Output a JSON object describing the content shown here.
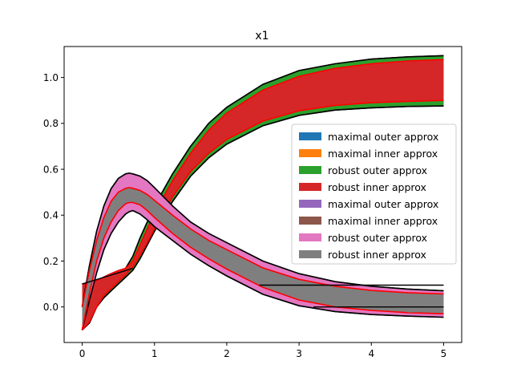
{
  "chart_data": {
    "type": "area",
    "title": "x1",
    "xlabel": "",
    "ylabel": "",
    "xlim": [
      -0.25,
      5.25
    ],
    "ylim": [
      -0.155,
      1.135
    ],
    "xticks": [
      0,
      1,
      2,
      3,
      4,
      5
    ],
    "xtick_labels": [
      "0",
      "1",
      "2",
      "3",
      "4",
      "5"
    ],
    "yticks": [
      0.0,
      0.2,
      0.4,
      0.6,
      0.8,
      1.0
    ],
    "ytick_labels": [
      "0.0",
      "0.2",
      "0.4",
      "0.6",
      "0.8",
      "1.0"
    ],
    "grid": false,
    "legend_position": "center-right",
    "series": [
      {
        "name": "maximal outer approx",
        "color": "#1f77b4",
        "x": [
          0.0,
          0.1,
          0.2,
          0.3,
          0.4,
          0.5,
          0.6,
          0.7,
          0.8,
          0.9,
          1.0,
          1.25,
          1.5,
          1.75,
          2.0,
          2.5,
          3.0,
          3.5,
          4.0,
          4.5,
          5.0
        ],
        "upper": [
          0.1,
          0.105,
          0.115,
          0.13,
          0.145,
          0.158,
          0.168,
          0.22,
          0.3,
          0.37,
          0.44,
          0.58,
          0.7,
          0.8,
          0.87,
          0.97,
          1.03,
          1.06,
          1.08,
          1.09,
          1.095
        ],
        "lower": [
          -0.1,
          -0.07,
          0.0,
          0.04,
          0.07,
          0.1,
          0.13,
          0.16,
          0.21,
          0.27,
          0.33,
          0.46,
          0.57,
          0.65,
          0.71,
          0.79,
          0.835,
          0.858,
          0.868,
          0.874,
          0.876
        ]
      },
      {
        "name": "maximal inner approx",
        "color": "#ff7f0e",
        "x": [
          0.0,
          0.1,
          0.2,
          0.3,
          0.4,
          0.5,
          0.6,
          0.7,
          0.8,
          0.9,
          1.0,
          1.25,
          1.5,
          1.75,
          2.0,
          2.5,
          3.0,
          3.5,
          4.0,
          4.5,
          5.0
        ],
        "upper": [
          0.1,
          0.105,
          0.115,
          0.13,
          0.145,
          0.158,
          0.168,
          0.2,
          0.27,
          0.34,
          0.41,
          0.55,
          0.67,
          0.77,
          0.845,
          0.945,
          1.005,
          1.04,
          1.06,
          1.072,
          1.078
        ],
        "lower": [
          -0.1,
          -0.065,
          0.0,
          0.05,
          0.08,
          0.11,
          0.14,
          0.175,
          0.225,
          0.28,
          0.34,
          0.48,
          0.59,
          0.67,
          0.73,
          0.81,
          0.855,
          0.878,
          0.89,
          0.896,
          0.9
        ]
      },
      {
        "name": "robust outer approx",
        "color": "#2ca02c",
        "x": [
          0.0,
          0.1,
          0.2,
          0.3,
          0.4,
          0.5,
          0.6,
          0.7,
          0.8,
          0.9,
          1.0,
          1.25,
          1.5,
          1.75,
          2.0,
          2.5,
          3.0,
          3.5,
          4.0,
          4.5,
          5.0
        ],
        "upper": [
          0.1,
          0.105,
          0.115,
          0.13,
          0.145,
          0.158,
          0.168,
          0.22,
          0.3,
          0.37,
          0.44,
          0.58,
          0.7,
          0.8,
          0.87,
          0.97,
          1.03,
          1.06,
          1.08,
          1.09,
          1.095
        ],
        "lower": [
          -0.1,
          -0.07,
          0.0,
          0.04,
          0.07,
          0.1,
          0.13,
          0.16,
          0.21,
          0.27,
          0.33,
          0.46,
          0.57,
          0.65,
          0.71,
          0.79,
          0.835,
          0.858,
          0.868,
          0.874,
          0.876
        ]
      },
      {
        "name": "robust inner approx",
        "color": "#d62728",
        "x": [
          0.0,
          0.1,
          0.2,
          0.3,
          0.4,
          0.5,
          0.6,
          0.7,
          0.8,
          0.9,
          1.0,
          1.25,
          1.5,
          1.75,
          2.0,
          2.5,
          3.0,
          3.5,
          4.0,
          4.5,
          5.0
        ],
        "upper": [
          0.1,
          0.105,
          0.115,
          0.13,
          0.145,
          0.158,
          0.168,
          0.2,
          0.27,
          0.34,
          0.41,
          0.55,
          0.67,
          0.77,
          0.845,
          0.945,
          1.005,
          1.04,
          1.06,
          1.072,
          1.078
        ],
        "lower": [
          -0.1,
          -0.065,
          0.0,
          0.05,
          0.08,
          0.11,
          0.14,
          0.175,
          0.225,
          0.28,
          0.34,
          0.48,
          0.59,
          0.67,
          0.73,
          0.81,
          0.855,
          0.878,
          0.89,
          0.896,
          0.9
        ]
      },
      {
        "name": "maximal outer approx",
        "color": "#9467bd",
        "x": [
          0.0,
          0.1,
          0.2,
          0.3,
          0.4,
          0.5,
          0.6,
          0.65,
          0.7,
          0.8,
          0.9,
          1.0,
          1.25,
          1.5,
          1.75,
          2.0,
          2.5,
          3.0,
          3.5,
          4.0,
          4.5,
          5.0
        ],
        "upper": [
          0.0,
          0.18,
          0.33,
          0.44,
          0.515,
          0.56,
          0.58,
          0.583,
          0.58,
          0.57,
          0.55,
          0.52,
          0.44,
          0.37,
          0.32,
          0.28,
          0.2,
          0.145,
          0.11,
          0.09,
          0.078,
          0.07
        ],
        "lower": [
          -0.1,
          0.03,
          0.15,
          0.25,
          0.32,
          0.37,
          0.405,
          0.415,
          0.42,
          0.405,
          0.38,
          0.35,
          0.29,
          0.23,
          0.18,
          0.135,
          0.055,
          0.005,
          -0.02,
          -0.033,
          -0.04,
          -0.045
        ]
      },
      {
        "name": "maximal inner approx",
        "color": "#8c564b",
        "x": [
          0.0,
          0.1,
          0.2,
          0.3,
          0.4,
          0.5,
          0.6,
          0.65,
          0.7,
          0.8,
          0.9,
          1.0,
          1.25,
          1.5,
          1.75,
          2.0,
          2.5,
          3.0,
          3.5,
          4.0,
          4.5,
          5.0
        ],
        "upper": [
          0.0,
          0.16,
          0.29,
          0.39,
          0.46,
          0.5,
          0.517,
          0.52,
          0.517,
          0.508,
          0.49,
          0.465,
          0.4,
          0.34,
          0.29,
          0.25,
          0.17,
          0.12,
          0.09,
          0.072,
          0.062,
          0.057
        ],
        "lower": [
          -0.1,
          0.06,
          0.2,
          0.3,
          0.37,
          0.42,
          0.45,
          0.455,
          0.455,
          0.445,
          0.42,
          0.39,
          0.32,
          0.26,
          0.21,
          0.165,
          0.085,
          0.03,
          0.0,
          -0.015,
          -0.025,
          -0.03
        ]
      },
      {
        "name": "robust outer approx",
        "color": "#e377c2",
        "x": [
          0.0,
          0.1,
          0.2,
          0.3,
          0.4,
          0.5,
          0.6,
          0.65,
          0.7,
          0.8,
          0.9,
          1.0,
          1.25,
          1.5,
          1.75,
          2.0,
          2.5,
          3.0,
          3.5,
          4.0,
          4.5,
          5.0
        ],
        "upper": [
          0.0,
          0.18,
          0.33,
          0.44,
          0.515,
          0.56,
          0.58,
          0.583,
          0.58,
          0.57,
          0.55,
          0.52,
          0.44,
          0.37,
          0.32,
          0.28,
          0.2,
          0.145,
          0.11,
          0.09,
          0.078,
          0.07
        ],
        "lower": [
          -0.1,
          0.03,
          0.15,
          0.25,
          0.32,
          0.37,
          0.405,
          0.415,
          0.42,
          0.405,
          0.38,
          0.35,
          0.29,
          0.23,
          0.18,
          0.135,
          0.055,
          0.005,
          -0.02,
          -0.033,
          -0.04,
          -0.045
        ]
      },
      {
        "name": "robust inner approx",
        "color": "#7f7f7f",
        "x": [
          0.0,
          0.1,
          0.2,
          0.3,
          0.4,
          0.5,
          0.6,
          0.65,
          0.7,
          0.8,
          0.9,
          1.0,
          1.25,
          1.5,
          1.75,
          2.0,
          2.5,
          3.0,
          3.5,
          4.0,
          4.5,
          5.0
        ],
        "upper": [
          0.0,
          0.16,
          0.29,
          0.39,
          0.46,
          0.5,
          0.517,
          0.52,
          0.517,
          0.508,
          0.49,
          0.465,
          0.4,
          0.34,
          0.29,
          0.25,
          0.17,
          0.12,
          0.09,
          0.072,
          0.062,
          0.057
        ],
        "lower": [
          -0.1,
          0.06,
          0.2,
          0.3,
          0.37,
          0.42,
          0.45,
          0.455,
          0.455,
          0.445,
          0.42,
          0.39,
          0.32,
          0.26,
          0.21,
          0.165,
          0.085,
          0.03,
          0.0,
          -0.015,
          -0.025,
          -0.03
        ]
      }
    ],
    "reference_segments": [
      {
        "x": [
          0.0,
          0.7
        ],
        "y": [
          0.1,
          0.168
        ]
      },
      {
        "x": [
          2.45,
          5.0
        ],
        "y": [
          0.095,
          0.095
        ]
      },
      {
        "x": [
          3.2,
          5.0
        ],
        "y": [
          0.0,
          0.0
        ]
      }
    ]
  }
}
